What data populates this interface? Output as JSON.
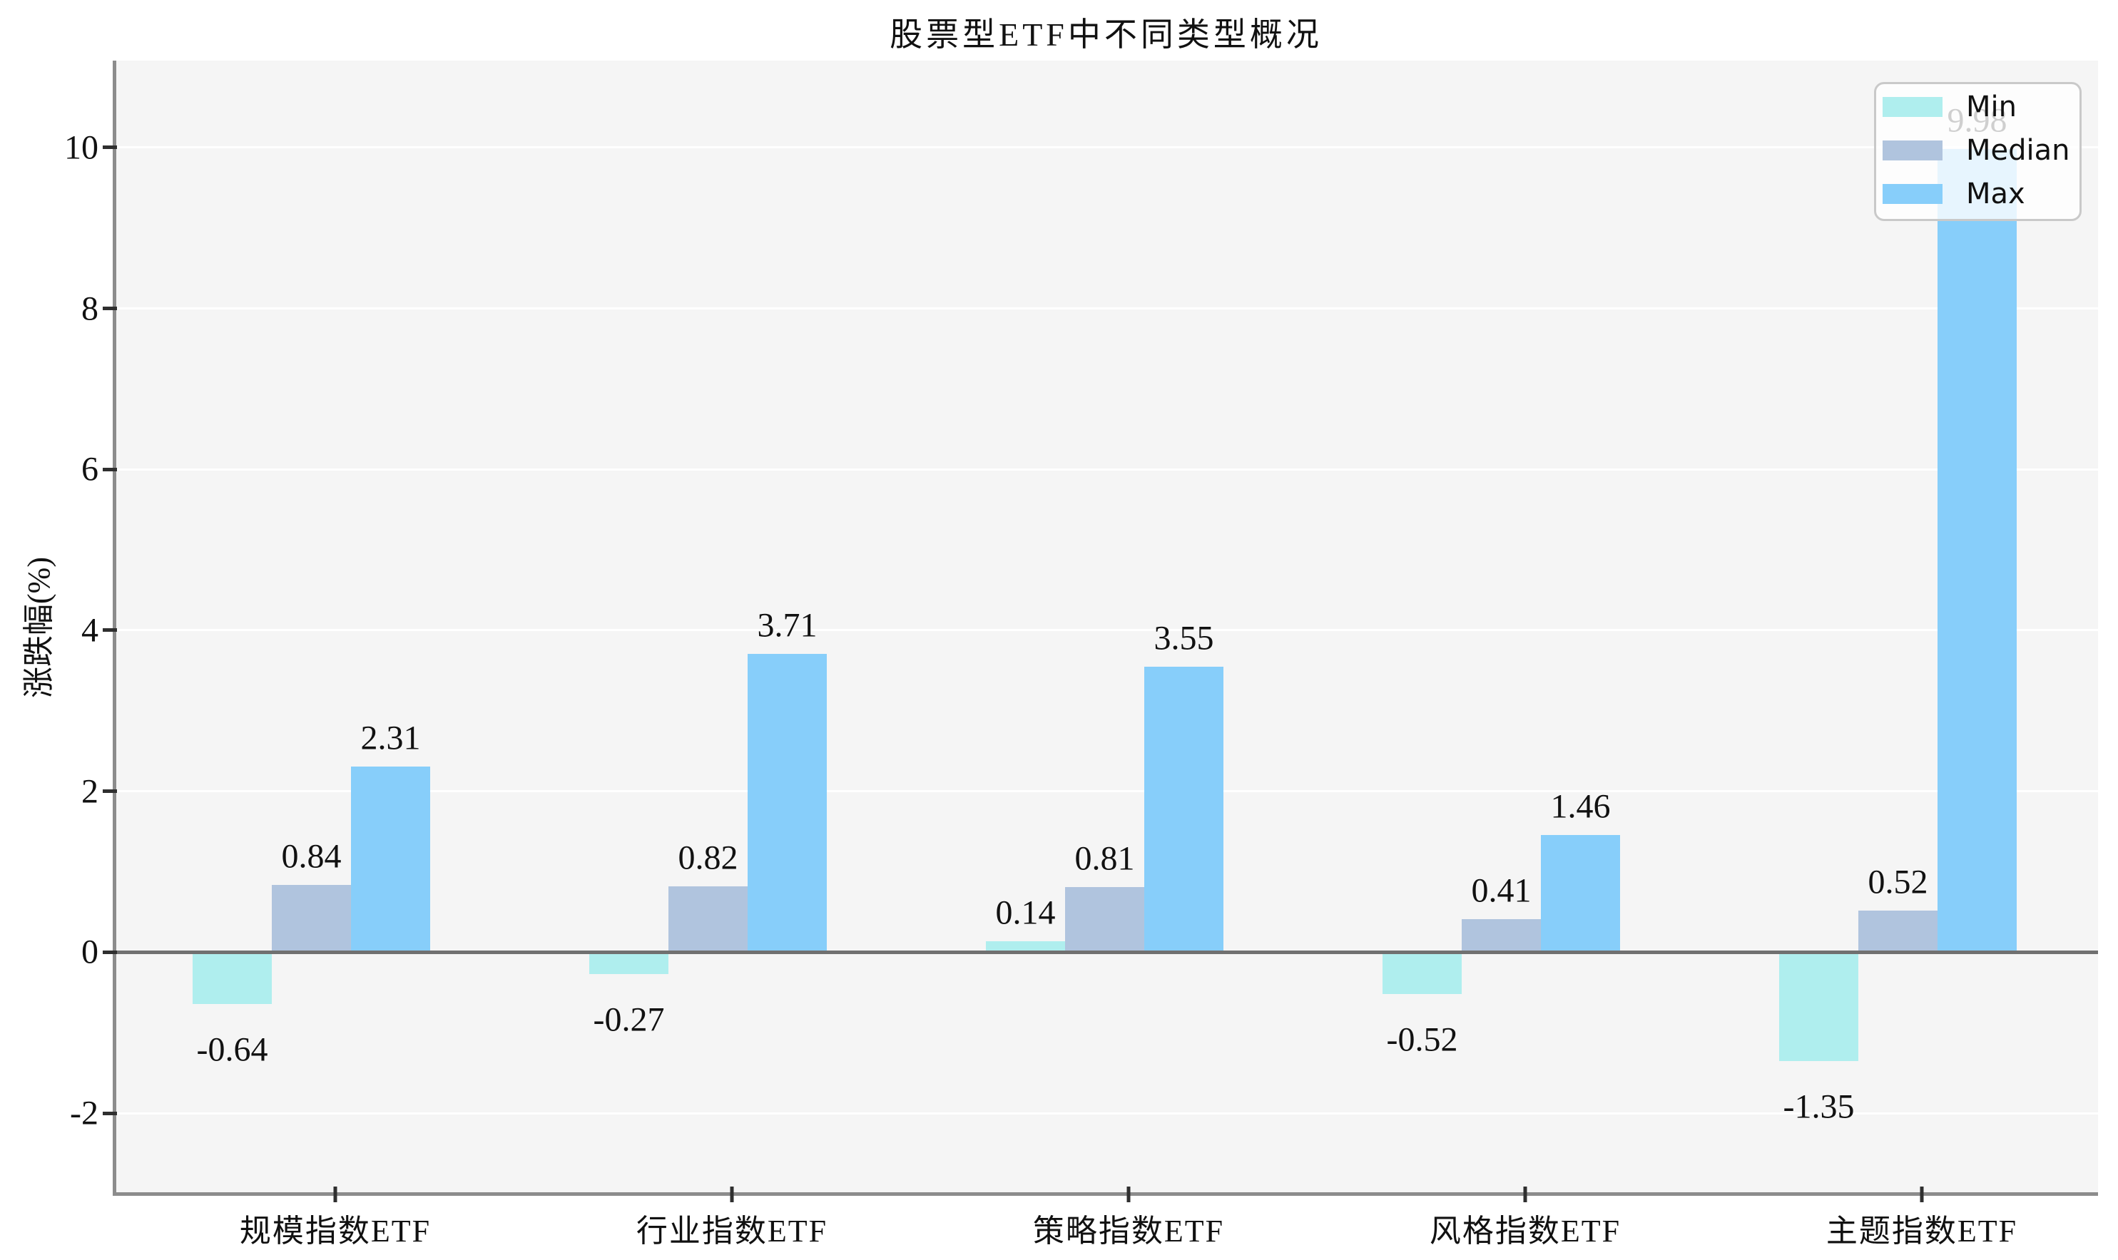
{
  "chart_data": {
    "type": "bar",
    "title": "股票型ETF中不同类型概况",
    "ylabel": "涨跌幅(%)",
    "xlabel": "",
    "categories": [
      "规模指数ETF",
      "行业指数ETF",
      "策略指数ETF",
      "风格指数ETF",
      "主题指数ETF"
    ],
    "series": [
      {
        "name": "Min",
        "color": "#AFEEEE",
        "values": [
          -0.64,
          -0.27,
          0.14,
          -0.52,
          -1.35
        ]
      },
      {
        "name": "Median",
        "color": "#B0C4DE",
        "values": [
          0.84,
          0.82,
          0.81,
          0.41,
          0.52
        ]
      },
      {
        "name": "Max",
        "color": "#87CEFA",
        "values": [
          2.31,
          3.71,
          3.55,
          1.46,
          9.98
        ]
      }
    ],
    "bar_value_labels": [
      [
        "-0.64",
        "-0.27",
        "0.14",
        "-0.52",
        "-1.35"
      ],
      [
        "0.84",
        "0.82",
        "0.81",
        "0.41",
        "0.52"
      ],
      [
        "2.31",
        "3.71",
        "3.55",
        "1.46",
        "9.98"
      ]
    ],
    "yticks": [
      "-2",
      "0",
      "2",
      "4",
      "6",
      "8",
      "10"
    ],
    "ylim": [
      -3.01,
      11.08
    ],
    "grid": true,
    "legend_position": "upper right",
    "legend_labels": [
      "Min",
      "Median",
      "Max"
    ]
  },
  "colors": {
    "plot_background": "#f5f5f5",
    "figure_background": "#ffffff",
    "gridline": "#ffffff",
    "zero_line": "#707070",
    "spine": "#8c8c8c",
    "text": "#111111",
    "legend_background": "rgba(255,255,255,0.8)",
    "legend_border": "#c9c9c9"
  }
}
